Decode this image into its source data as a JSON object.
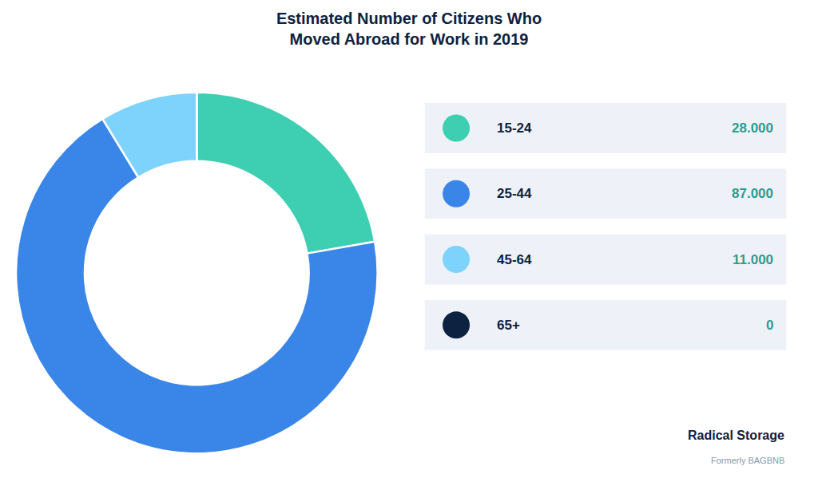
{
  "chart_data": {
    "type": "donut",
    "title": "Estimated Number of Citizens Who\nMoved Abroad for Work in 2019",
    "categories": [
      "15-24",
      "25-44",
      "45-64",
      "65+"
    ],
    "values": [
      28000,
      87000,
      11000,
      0
    ],
    "value_labels": [
      "28.000",
      "87.000",
      "11.000",
      "0"
    ],
    "colors": [
      "#3ecfb2",
      "#3a86e8",
      "#7dd3fc",
      "#0d2240"
    ],
    "legend": "right",
    "annotations": [
      "Radical Storage",
      "Formerly BAGBNB"
    ]
  }
}
